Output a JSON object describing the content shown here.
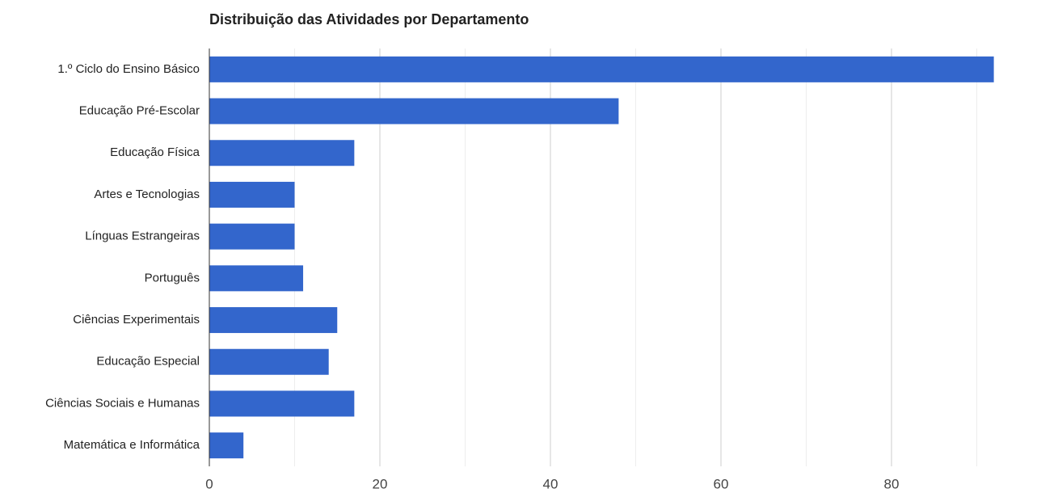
{
  "chart_data": {
    "type": "bar",
    "orientation": "horizontal",
    "title": "Distribuição das Atividades por Departamento",
    "categories": [
      "1.º Ciclo do Ensino Básico",
      "Educação Pré-Escolar",
      "Educação Física",
      "Artes e Tecnologias",
      "Línguas Estrangeiras",
      "Português",
      "Ciências Experimentais",
      "Educação Especial",
      "Ciências Sociais e Humanas",
      "Matemática e Informática"
    ],
    "values": [
      92,
      48,
      17,
      10,
      10,
      11,
      15,
      14,
      17,
      4
    ],
    "color": "#3366cc",
    "xlim": [
      0,
      97
    ],
    "xticks": [
      0,
      20,
      40,
      60,
      80
    ],
    "minor_xticks": [
      10,
      30,
      50,
      70,
      90
    ],
    "grid": true
  }
}
